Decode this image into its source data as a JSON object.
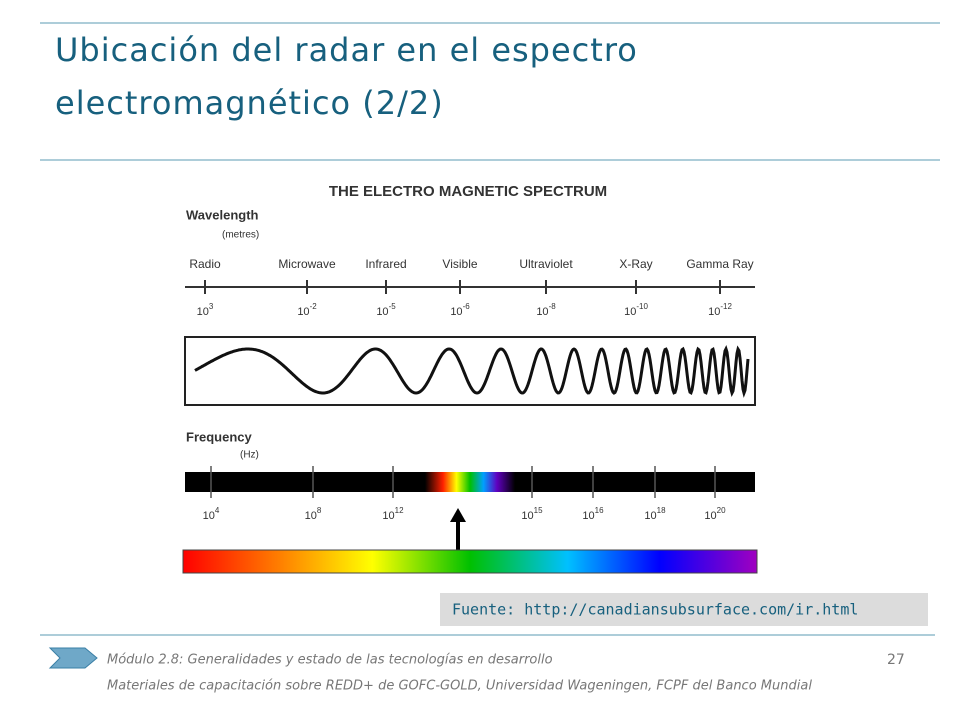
{
  "header": {
    "title_line1": "Ubicación del radar en el espectro",
    "title_line2": "electromagnético (2/2)"
  },
  "figure": {
    "title": "THE ELECTRO MAGNETIC SPECTRUM",
    "wavelength_label": "Wavelength",
    "wavelength_unit": "(metres)",
    "bands": [
      "Radio",
      "Microwave",
      "Infrared",
      "Visible",
      "Ultraviolet",
      "X-Ray",
      "Gamma Ray"
    ],
    "wavelength_ticks": [
      {
        "base": "10",
        "exp": "3"
      },
      {
        "base": "10",
        "exp": "-2"
      },
      {
        "base": "10",
        "exp": "-5"
      },
      {
        "base": "10",
        "exp": "-6"
      },
      {
        "base": "10",
        "exp": "-8"
      },
      {
        "base": "10",
        "exp": "-10"
      },
      {
        "base": "10",
        "exp": "-12"
      }
    ],
    "frequency_label": "Frequency",
    "frequency_unit": "(Hz)",
    "frequency_ticks": [
      {
        "base": "10",
        "exp": "4"
      },
      {
        "base": "10",
        "exp": "8"
      },
      {
        "base": "10",
        "exp": "12"
      },
      {
        "base": "10",
        "exp": "15"
      },
      {
        "base": "10",
        "exp": "16"
      },
      {
        "base": "10",
        "exp": "18"
      },
      {
        "base": "10",
        "exp": "20"
      }
    ]
  },
  "source": "Fuente: http://canadiansubsurface.com/ir.html",
  "footer": {
    "line1": "Módulo 2.8: Generalidades y estado de las tecnologías en desarrollo",
    "page": "27",
    "line2": "Materiales de capacitación sobre REDD+ de GOFC-GOLD, Universidad Wageningen, FCPF del Banco Mundial"
  }
}
